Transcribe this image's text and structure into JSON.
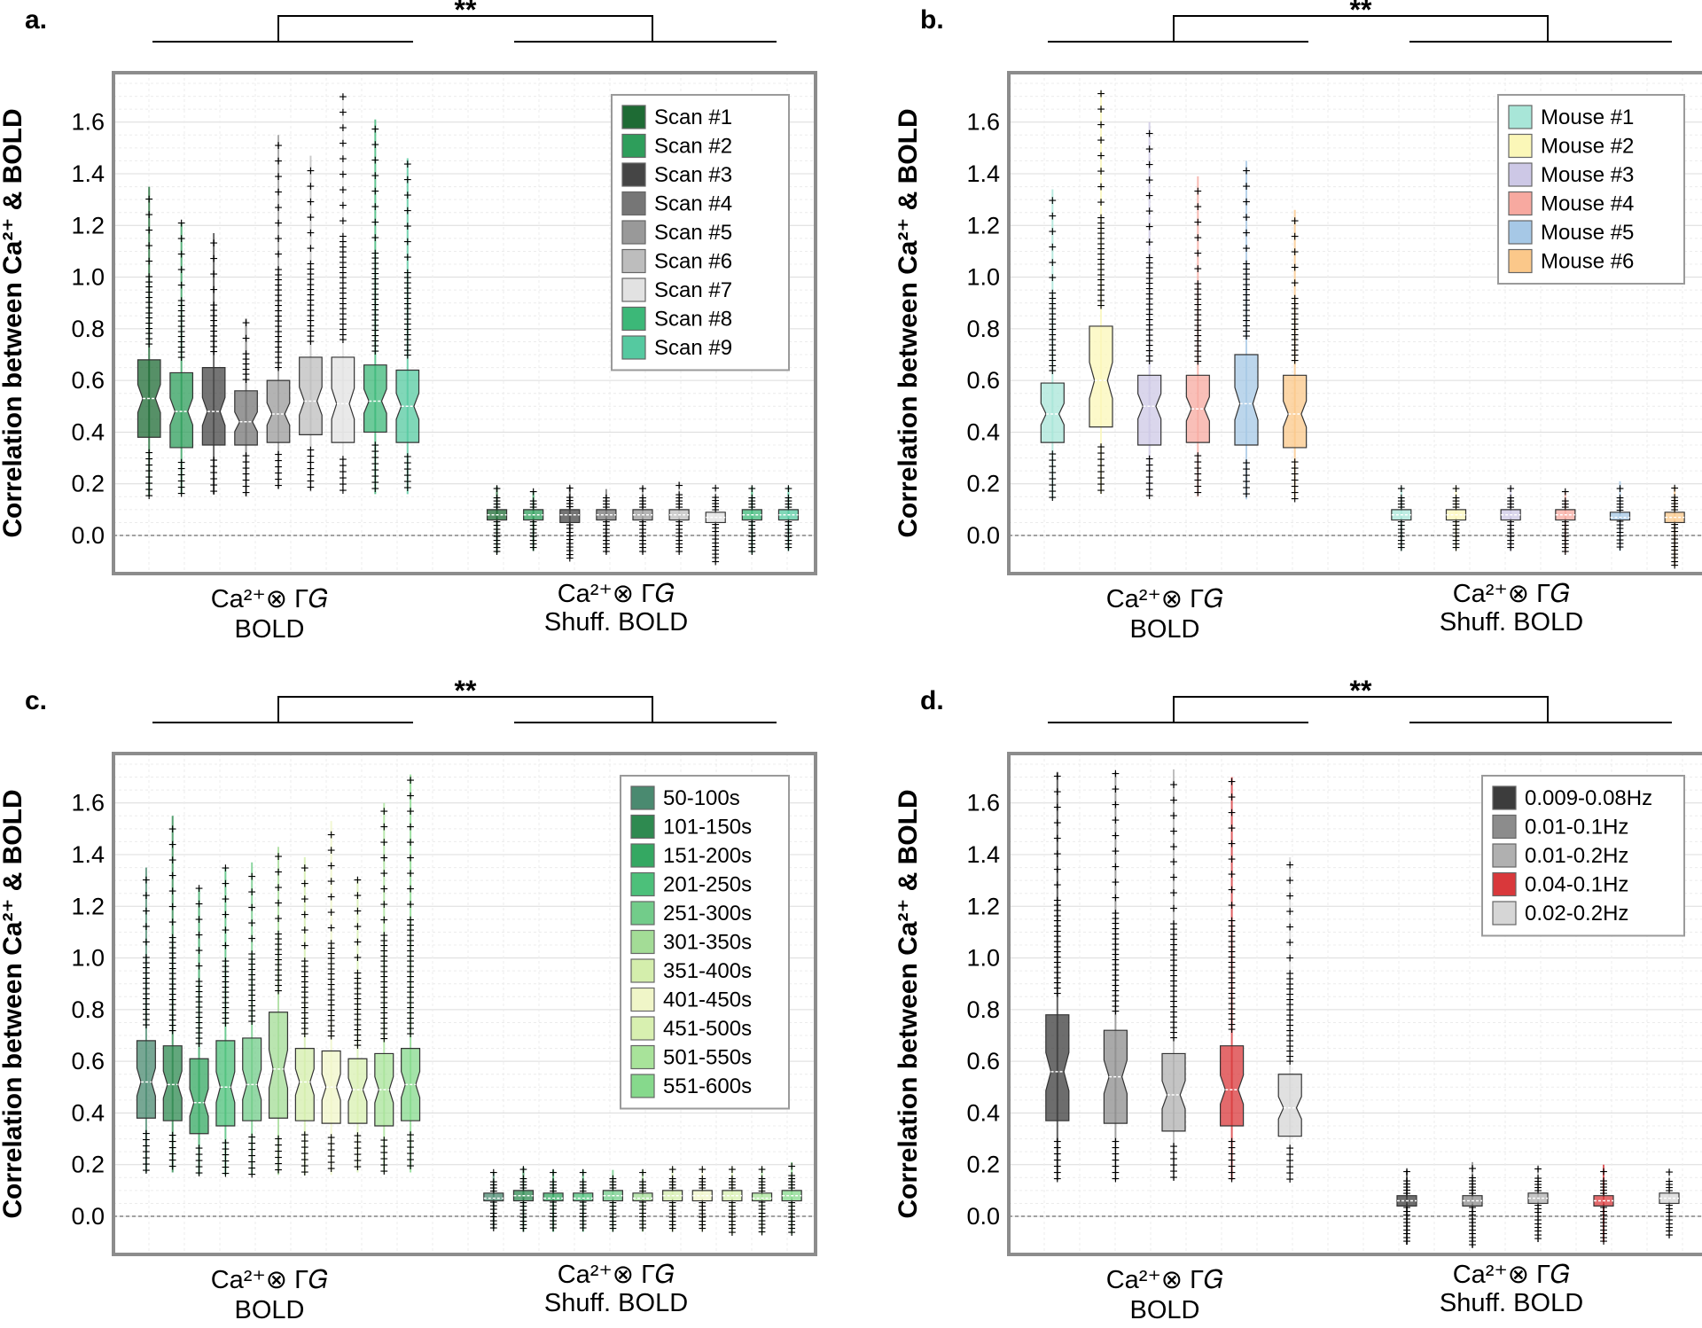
{
  "figure": {
    "ylabel": "Correlation between Ca²⁺ & BOLD",
    "significance": "**",
    "yticks": [
      0.0,
      0.2,
      0.4,
      0.6,
      0.8,
      1.0,
      1.2,
      1.4,
      1.6
    ],
    "categories": [
      {
        "line1": "Ca²⁺⊗ Γ𝐺",
        "line2": "BOLD"
      },
      {
        "line1": "Ca²⁺⊗ Γ𝐺",
        "line2": "Shuff. BOLD"
      }
    ]
  },
  "chart_data": [
    {
      "panel": "a.",
      "type": "box",
      "ylabel": "Correlation between Ca²⁺ & BOLD",
      "ylim": [
        -0.12,
        1.75
      ],
      "categories": [
        "Ca²⁺⊗ΓG BOLD",
        "Ca²⁺⊗ΓG Shuff. BOLD"
      ],
      "legend": "top-right",
      "series": [
        {
          "name": "Scan #1",
          "color": "#1e6b34",
          "bold": {
            "min": 0.15,
            "q1": 0.38,
            "median": 0.53,
            "q3": 0.68,
            "max": 1.35
          },
          "shuff": {
            "min": -0.07,
            "q1": 0.06,
            "median": 0.08,
            "q3": 0.1,
            "max": 0.19
          }
        },
        {
          "name": "Scan #2",
          "color": "#2e9e5b",
          "bold": {
            "min": 0.16,
            "q1": 0.34,
            "median": 0.48,
            "q3": 0.63,
            "max": 1.21
          },
          "shuff": {
            "min": -0.06,
            "q1": 0.06,
            "median": 0.08,
            "q3": 0.1,
            "max": 0.17
          }
        },
        {
          "name": "Scan #3",
          "color": "#454545",
          "bold": {
            "min": 0.16,
            "q1": 0.35,
            "median": 0.48,
            "q3": 0.65,
            "max": 1.17
          },
          "shuff": {
            "min": -0.09,
            "q1": 0.05,
            "median": 0.08,
            "q3": 0.1,
            "max": 0.19
          }
        },
        {
          "name": "Scan #4",
          "color": "#767676",
          "bold": {
            "min": 0.15,
            "q1": 0.35,
            "median": 0.44,
            "q3": 0.56,
            "max": 0.84
          },
          "shuff": {
            "min": -0.07,
            "q1": 0.06,
            "median": 0.08,
            "q3": 0.1,
            "max": 0.18
          }
        },
        {
          "name": "Scan #5",
          "color": "#999999",
          "bold": {
            "min": 0.18,
            "q1": 0.36,
            "median": 0.47,
            "q3": 0.6,
            "max": 1.55
          },
          "shuff": {
            "min": -0.07,
            "q1": 0.06,
            "median": 0.08,
            "q3": 0.1,
            "max": 0.19
          }
        },
        {
          "name": "Scan #6",
          "color": "#bdbdbd",
          "bold": {
            "min": 0.17,
            "q1": 0.39,
            "median": 0.52,
            "q3": 0.69,
            "max": 1.47
          },
          "shuff": {
            "min": -0.07,
            "q1": 0.06,
            "median": 0.08,
            "q3": 0.1,
            "max": 0.21
          }
        },
        {
          "name": "Scan #7",
          "color": "#e2e2e2",
          "bold": {
            "min": 0.17,
            "q1": 0.36,
            "median": 0.51,
            "q3": 0.69,
            "max": 1.71
          },
          "shuff": {
            "min": -0.11,
            "q1": 0.05,
            "median": 0.07,
            "q3": 0.09,
            "max": 0.19
          }
        },
        {
          "name": "Scan #8",
          "color": "#3cb878",
          "bold": {
            "min": 0.16,
            "q1": 0.4,
            "median": 0.52,
            "q3": 0.66,
            "max": 1.61
          },
          "shuff": {
            "min": -0.07,
            "q1": 0.06,
            "median": 0.08,
            "q3": 0.1,
            "max": 0.19
          }
        },
        {
          "name": "Scan #9",
          "color": "#55c9a0",
          "bold": {
            "min": 0.16,
            "q1": 0.36,
            "median": 0.5,
            "q3": 0.64,
            "max": 1.46
          },
          "shuff": {
            "min": -0.06,
            "q1": 0.06,
            "median": 0.08,
            "q3": 0.1,
            "max": 0.19
          }
        }
      ]
    },
    {
      "panel": "b.",
      "type": "box",
      "ylabel": "Correlation between Ca²⁺ & BOLD",
      "ylim": [
        -0.12,
        1.75
      ],
      "categories": [
        "Ca²⁺⊗ΓG BOLD",
        "Ca²⁺⊗ΓG Shuff. BOLD"
      ],
      "legend": "top-right",
      "series": [
        {
          "name": "Mouse #1",
          "color": "#a8e6d8",
          "bold": {
            "min": 0.14,
            "q1": 0.36,
            "median": 0.47,
            "q3": 0.59,
            "max": 1.34
          },
          "shuff": {
            "min": -0.06,
            "q1": 0.06,
            "median": 0.08,
            "q3": 0.1,
            "max": 0.19
          }
        },
        {
          "name": "Mouse #2",
          "color": "#fbf7b8",
          "bold": {
            "min": 0.16,
            "q1": 0.42,
            "median": 0.6,
            "q3": 0.81,
            "max": 1.72
          },
          "shuff": {
            "min": -0.06,
            "q1": 0.06,
            "median": 0.08,
            "q3": 0.1,
            "max": 0.19
          }
        },
        {
          "name": "Mouse #3",
          "color": "#cdc8e6",
          "bold": {
            "min": 0.15,
            "q1": 0.35,
            "median": 0.5,
            "q3": 0.62,
            "max": 1.6
          },
          "shuff": {
            "min": -0.06,
            "q1": 0.06,
            "median": 0.08,
            "q3": 0.1,
            "max": 0.19
          }
        },
        {
          "name": "Mouse #4",
          "color": "#f7a9a0",
          "bold": {
            "min": 0.15,
            "q1": 0.36,
            "median": 0.49,
            "q3": 0.62,
            "max": 1.39
          },
          "shuff": {
            "min": -0.07,
            "q1": 0.06,
            "median": 0.08,
            "q3": 0.1,
            "max": 0.17
          }
        },
        {
          "name": "Mouse #5",
          "color": "#a6c8e6",
          "bold": {
            "min": 0.14,
            "q1": 0.35,
            "median": 0.51,
            "q3": 0.7,
            "max": 1.45
          },
          "shuff": {
            "min": -0.06,
            "q1": 0.06,
            "median": 0.07,
            "q3": 0.09,
            "max": 0.21
          }
        },
        {
          "name": "Mouse #6",
          "color": "#fbc88a",
          "bold": {
            "min": 0.14,
            "q1": 0.34,
            "median": 0.47,
            "q3": 0.62,
            "max": 1.26
          },
          "shuff": {
            "min": -0.12,
            "q1": 0.05,
            "median": 0.07,
            "q3": 0.09,
            "max": 0.19
          }
        }
      ]
    },
    {
      "panel": "c.",
      "type": "box",
      "ylabel": "Correlation between Ca²⁺ & BOLD",
      "ylim": [
        -0.12,
        1.75
      ],
      "categories": [
        "Ca²⁺⊗ΓG BOLD",
        "Ca²⁺⊗ΓG Shuff. BOLD"
      ],
      "legend": "top-right",
      "series": [
        {
          "name": "50-100s",
          "color": "#4a8a70",
          "bold": {
            "min": 0.17,
            "q1": 0.38,
            "median": 0.52,
            "q3": 0.68,
            "max": 1.35
          },
          "shuff": {
            "min": -0.05,
            "q1": 0.06,
            "median": 0.07,
            "q3": 0.09,
            "max": 0.17
          }
        },
        {
          "name": "101-150s",
          "color": "#2e8a50",
          "bold": {
            "min": 0.17,
            "q1": 0.37,
            "median": 0.51,
            "q3": 0.66,
            "max": 1.55
          },
          "shuff": {
            "min": -0.06,
            "q1": 0.06,
            "median": 0.08,
            "q3": 0.1,
            "max": 0.19
          }
        },
        {
          "name": "151-200s",
          "color": "#34a862",
          "bold": {
            "min": 0.16,
            "q1": 0.32,
            "median": 0.44,
            "q3": 0.61,
            "max": 1.27
          },
          "shuff": {
            "min": -0.06,
            "q1": 0.06,
            "median": 0.07,
            "q3": 0.09,
            "max": 0.18
          }
        },
        {
          "name": "201-250s",
          "color": "#4cc07a",
          "bold": {
            "min": 0.16,
            "q1": 0.35,
            "median": 0.5,
            "q3": 0.68,
            "max": 1.35
          },
          "shuff": {
            "min": -0.06,
            "q1": 0.06,
            "median": 0.07,
            "q3": 0.09,
            "max": 0.18
          }
        },
        {
          "name": "251-300s",
          "color": "#72cc8a",
          "bold": {
            "min": 0.16,
            "q1": 0.37,
            "median": 0.51,
            "q3": 0.69,
            "max": 1.37
          },
          "shuff": {
            "min": -0.06,
            "q1": 0.06,
            "median": 0.08,
            "q3": 0.1,
            "max": 0.18
          }
        },
        {
          "name": "301-350s",
          "color": "#a3dc96",
          "bold": {
            "min": 0.16,
            "q1": 0.38,
            "median": 0.57,
            "q3": 0.79,
            "max": 1.43
          },
          "shuff": {
            "min": -0.06,
            "q1": 0.06,
            "median": 0.07,
            "q3": 0.09,
            "max": 0.18
          }
        },
        {
          "name": "351-400s",
          "color": "#d4eeac",
          "bold": {
            "min": 0.16,
            "q1": 0.37,
            "median": 0.52,
            "q3": 0.65,
            "max": 1.39
          },
          "shuff": {
            "min": -0.06,
            "q1": 0.06,
            "median": 0.08,
            "q3": 0.1,
            "max": 0.19
          }
        },
        {
          "name": "401-450s",
          "color": "#f0f6c8",
          "bold": {
            "min": 0.16,
            "q1": 0.36,
            "median": 0.5,
            "q3": 0.64,
            "max": 1.53
          },
          "shuff": {
            "min": -0.06,
            "q1": 0.06,
            "median": 0.08,
            "q3": 0.1,
            "max": 0.19
          }
        },
        {
          "name": "451-500s",
          "color": "#d8f0b0",
          "bold": {
            "min": 0.17,
            "q1": 0.36,
            "median": 0.49,
            "q3": 0.61,
            "max": 1.31
          },
          "shuff": {
            "min": -0.07,
            "q1": 0.06,
            "median": 0.08,
            "q3": 0.1,
            "max": 0.19
          }
        },
        {
          "name": "501-550s",
          "color": "#a8e39a",
          "bold": {
            "min": 0.17,
            "q1": 0.35,
            "median": 0.49,
            "q3": 0.63,
            "max": 1.6
          },
          "shuff": {
            "min": -0.07,
            "q1": 0.06,
            "median": 0.07,
            "q3": 0.09,
            "max": 0.19
          }
        },
        {
          "name": "551-600s",
          "color": "#86d98c",
          "bold": {
            "min": 0.17,
            "q1": 0.37,
            "median": 0.51,
            "q3": 0.65,
            "max": 1.71
          },
          "shuff": {
            "min": -0.07,
            "q1": 0.06,
            "median": 0.08,
            "q3": 0.1,
            "max": 0.21
          }
        }
      ]
    },
    {
      "panel": "d.",
      "type": "box",
      "ylabel": "Correlation between Ca²⁺ & BOLD",
      "ylim": [
        -0.12,
        1.75
      ],
      "categories": [
        "Ca²⁺⊗ΓG BOLD",
        "Ca²⁺⊗ΓG Shuff. BOLD"
      ],
      "legend": "top-right",
      "series": [
        {
          "name": "0.009-0.08Hz",
          "color": "#3c3c3c",
          "bold": {
            "min": 0.14,
            "q1": 0.37,
            "median": 0.56,
            "q3": 0.78,
            "max": 1.72
          },
          "shuff": {
            "min": -0.11,
            "q1": 0.04,
            "median": 0.06,
            "q3": 0.08,
            "max": 0.18
          }
        },
        {
          "name": "0.01-0.1Hz",
          "color": "#8c8c8c",
          "bold": {
            "min": 0.14,
            "q1": 0.36,
            "median": 0.54,
            "q3": 0.72,
            "max": 1.72
          },
          "shuff": {
            "min": -0.12,
            "q1": 0.04,
            "median": 0.06,
            "q3": 0.08,
            "max": 0.21
          }
        },
        {
          "name": "0.01-0.2Hz",
          "color": "#b0b0b0",
          "bold": {
            "min": 0.14,
            "q1": 0.33,
            "median": 0.47,
            "q3": 0.63,
            "max": 1.73
          },
          "shuff": {
            "min": -0.1,
            "q1": 0.05,
            "median": 0.07,
            "q3": 0.09,
            "max": 0.19
          }
        },
        {
          "name": "0.04-0.1Hz",
          "color": "#d9383b",
          "bold": {
            "min": 0.14,
            "q1": 0.35,
            "median": 0.49,
            "q3": 0.66,
            "max": 1.7
          },
          "shuff": {
            "min": -0.1,
            "q1": 0.04,
            "median": 0.06,
            "q3": 0.08,
            "max": 0.2
          }
        },
        {
          "name": "0.02-0.2Hz",
          "color": "#d6d6d6",
          "bold": {
            "min": 0.14,
            "q1": 0.31,
            "median": 0.42,
            "q3": 0.55,
            "max": 1.39
          },
          "shuff": {
            "min": -0.08,
            "q1": 0.05,
            "median": 0.07,
            "q3": 0.09,
            "max": 0.18
          }
        }
      ]
    }
  ]
}
